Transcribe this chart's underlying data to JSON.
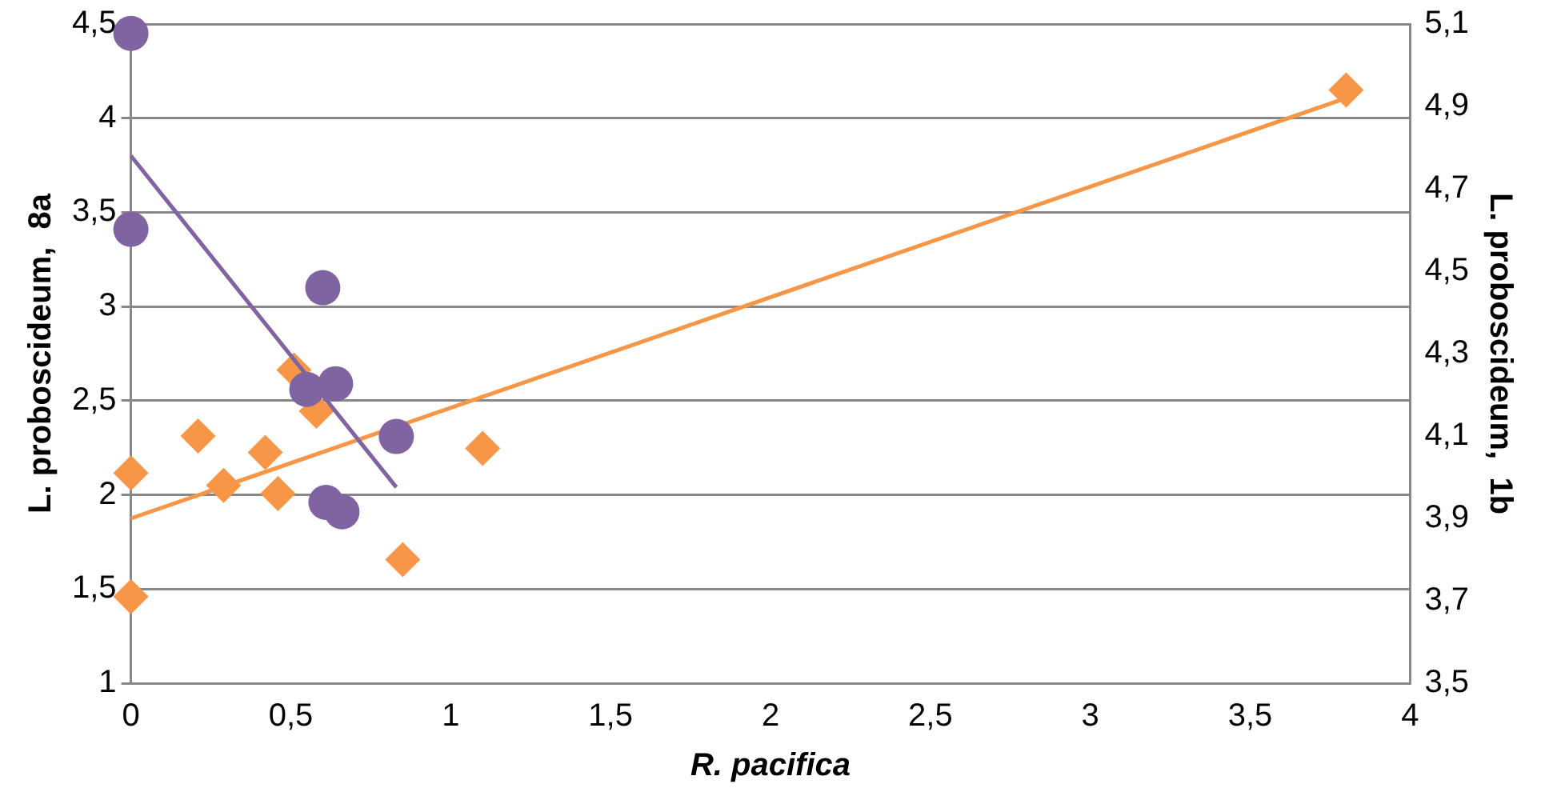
{
  "chart_data": {
    "type": "scatter",
    "xlabel": "R. pacifica",
    "ylabel": "L. proboscideum,  8a",
    "y2label": "L. proboscideum,  1b",
    "xlim": [
      0,
      4
    ],
    "xticks": [
      0,
      {
        "value": 0.5,
        "label": "0,5"
      },
      1,
      {
        "value": 1.5,
        "label": "1,5"
      },
      2,
      {
        "value": 2.5,
        "label": "2,5"
      },
      3,
      {
        "value": 3.5,
        "label": "3,5"
      },
      4
    ],
    "ylim": [
      1,
      4.5
    ],
    "yticks": [
      1,
      {
        "value": 1.5,
        "label": "1,5"
      },
      2,
      {
        "value": 2.5,
        "label": "2,5"
      },
      3,
      {
        "value": 3.5,
        "label": "3,5"
      },
      4,
      {
        "value": 4.5,
        "label": "4,5"
      }
    ],
    "y2lim": [
      3.5,
      5.1
    ],
    "y2ticks": [
      {
        "value": 3.5,
        "label": "3,5"
      },
      {
        "value": 3.7,
        "label": "3,7"
      },
      {
        "value": 3.9,
        "label": "3,9"
      },
      {
        "value": 4.1,
        "label": "4,1"
      },
      {
        "value": 4.3,
        "label": "4,3"
      },
      {
        "value": 4.5,
        "label": "4,5"
      },
      {
        "value": 4.7,
        "label": "4,7"
      },
      {
        "value": 4.9,
        "label": "4,9"
      },
      {
        "value": 5.1,
        "label": "5,1"
      }
    ],
    "grid": "y",
    "series": [
      {
        "type": "scatter",
        "color": "#8064a2",
        "marker": "circle",
        "axis": "y",
        "x": [
          0,
          0,
          0.6,
          0.55,
          0.64,
          0.83,
          0.61,
          0.66
        ],
        "values": [
          4.45,
          3.41,
          3.1,
          2.56,
          2.59,
          2.31,
          1.96,
          1.91
        ]
      },
      {
        "type": "line",
        "color": "#8064a2",
        "marker": "none",
        "axis": "y",
        "x": [
          0,
          0.83
        ],
        "values": [
          3.8,
          2.04
        ]
      },
      {
        "type": "scatter",
        "color": "#f79646",
        "marker": "diamond",
        "axis": "y2",
        "x": [
          0,
          0,
          0.21,
          0.29,
          0.42,
          0.46,
          0.51,
          0.58,
          0.85,
          1.1,
          3.8
        ],
        "values": [
          4.01,
          3.71,
          4.1,
          3.98,
          4.06,
          3.96,
          4.26,
          4.16,
          3.8,
          4.07,
          4.94
        ]
      },
      {
        "type": "line",
        "color": "#f79646",
        "marker": "none",
        "axis": "y2",
        "x": [
          0,
          3.8
        ],
        "values": [
          3.9,
          4.92
        ]
      }
    ]
  }
}
